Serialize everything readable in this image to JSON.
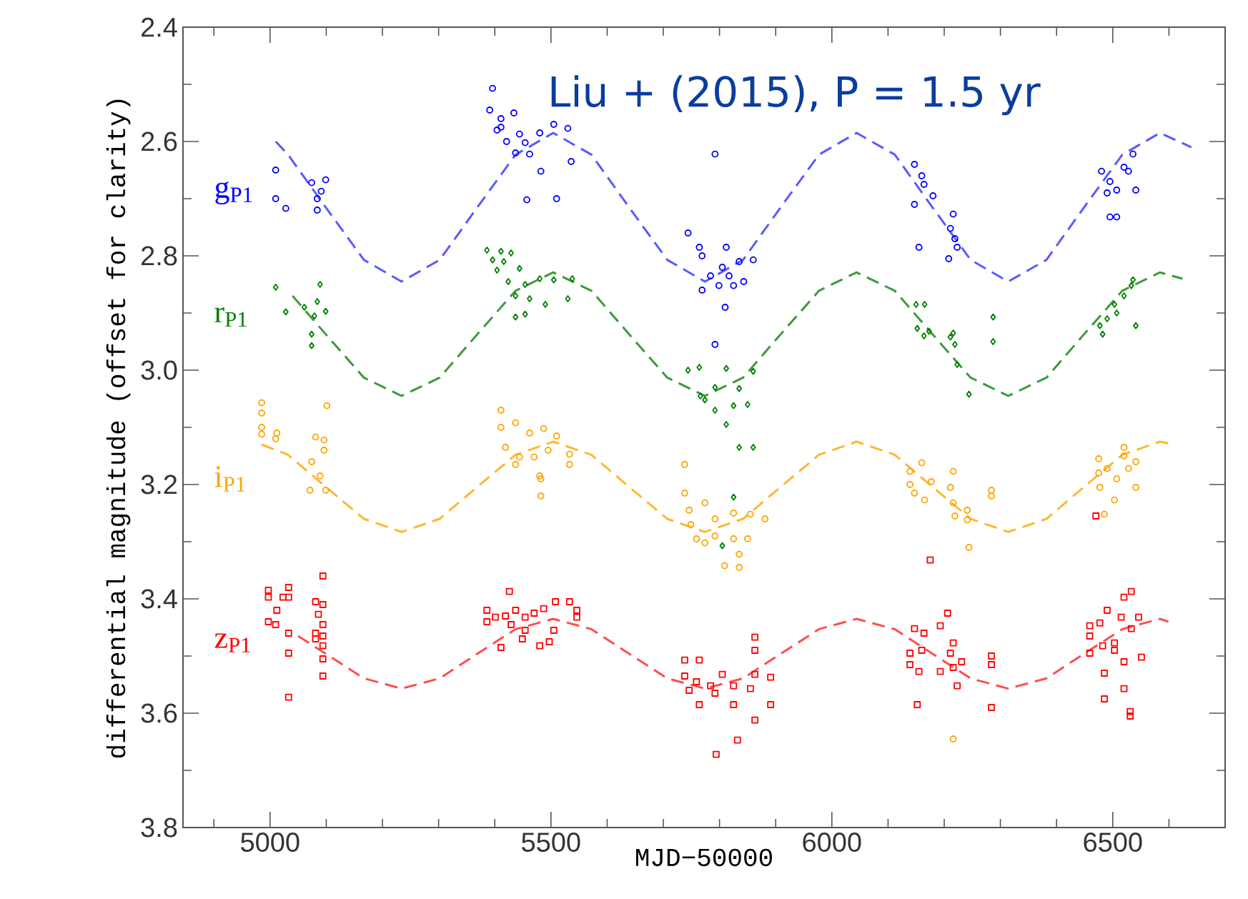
{
  "chart_data": {
    "type": "scatter",
    "xlabel": "MJD−50000",
    "ylabel": "differential magnitude (offset for clarity)",
    "annotations": [
      "Liu + (2015), P = 1.5 yr"
    ],
    "xlim": [
      4845,
      6700
    ],
    "ylim": [
      3.8,
      2.4
    ],
    "xticks": [
      {
        "value": 4900,
        "label": null
      },
      5000,
      {
        "value": 5100,
        "label": null
      },
      {
        "value": 5200,
        "label": null
      },
      {
        "value": 5300,
        "label": null
      },
      {
        "value": 5400,
        "label": null
      },
      5500,
      {
        "value": 5600,
        "label": null
      },
      {
        "value": 5700,
        "label": null
      },
      {
        "value": 5800,
        "label": null
      },
      {
        "value": 5900,
        "label": null
      },
      6000,
      {
        "value": 6100,
        "label": null
      },
      {
        "value": 6200,
        "label": null
      },
      {
        "value": 6300,
        "label": null
      },
      {
        "value": 6400,
        "label": null
      },
      6500,
      {
        "value": 6600,
        "label": null
      }
    ],
    "yticks": [
      {
        "value": 2.4,
        "label": "2.4"
      },
      {
        "value": 2.5,
        "label": null
      },
      {
        "value": 2.6,
        "label": "2.6"
      },
      {
        "value": 2.7,
        "label": null
      },
      {
        "value": 2.8,
        "label": "2.8"
      },
      {
        "value": 2.9,
        "label": null
      },
      {
        "value": 3.0,
        "label": "3.0"
      },
      {
        "value": 3.1,
        "label": null
      },
      {
        "value": 3.2,
        "label": "3.2"
      },
      {
        "value": 3.3,
        "label": null
      },
      {
        "value": 3.4,
        "label": "3.4"
      },
      {
        "value": 3.5,
        "label": null
      },
      {
        "value": 3.6,
        "label": "3.6"
      },
      {
        "value": 3.7,
        "label": null
      },
      {
        "value": 3.8,
        "label": "3.8"
      }
    ],
    "tick_labels": "xy",
    "series": [
      {
        "name": "g$_{P1}$",
        "marker": "circle",
        "color": "#0000ff",
        "x": [
          5010,
          5010,
          5028,
          5074,
          5099,
          5091,
          5084,
          5084,
          5396,
          5391,
          5411,
          5434,
          5411,
          5444,
          5454,
          5437,
          5462,
          5480,
          5505,
          5530,
          5482,
          5457,
          5510,
          5536,
          5421,
          5404,
          5792,
          5744,
          5764,
          5812,
          5769,
          5784,
          5805,
          5835,
          5860,
          5825,
          5799,
          5810,
          5769,
          5843,
          5817,
          5792,
          6147,
          6160,
          6164,
          6180,
          6147,
          6155,
          6216,
          6211,
          6219,
          6223,
          6208,
          6480,
          6495,
          6520,
          6536,
          6528,
          6490,
          6507,
          6541,
          6495,
          6507
        ],
        "values": [
          2.65,
          2.7,
          2.717,
          2.672,
          2.667,
          2.687,
          2.7,
          2.72,
          2.507,
          2.545,
          2.56,
          2.55,
          2.575,
          2.587,
          2.602,
          2.62,
          2.622,
          2.585,
          2.57,
          2.577,
          2.652,
          2.702,
          2.7,
          2.635,
          2.6,
          2.58,
          2.622,
          2.76,
          2.785,
          2.785,
          2.8,
          2.835,
          2.82,
          2.81,
          2.807,
          2.852,
          2.852,
          2.89,
          2.86,
          2.845,
          2.835,
          2.955,
          2.64,
          2.66,
          2.675,
          2.695,
          2.71,
          2.785,
          2.727,
          2.752,
          2.77,
          2.785,
          2.805,
          2.652,
          2.67,
          2.645,
          2.622,
          2.652,
          2.69,
          2.685,
          2.685,
          2.732,
          2.732
        ]
      },
      {
        "name": "r$_{P1}$",
        "marker": "diamond",
        "color": "#008000",
        "x": [
          5010,
          5028,
          5089,
          5061,
          5084,
          5079,
          5099,
          5074,
          5074,
          5386,
          5411,
          5429,
          5396,
          5416,
          5444,
          5424,
          5454,
          5437,
          5462,
          5480,
          5505,
          5490,
          5437,
          5454,
          5530,
          5538,
          5404,
          5744,
          5764,
          5812,
          5860,
          5766,
          5792,
          5835,
          5792,
          5812,
          5825,
          5774,
          5850,
          5835,
          5860,
          5825,
          5805,
          6150,
          6165,
          6152,
          6173,
          6164,
          6216,
          6211,
          6219,
          6223,
          6244,
          6287,
          6287,
          6477,
          6490,
          6503,
          6520,
          6533,
          6536,
          6507,
          6541,
          6482
        ],
        "values": [
          2.855,
          2.898,
          2.85,
          2.89,
          2.88,
          2.905,
          2.897,
          2.937,
          2.957,
          2.79,
          2.792,
          2.795,
          2.807,
          2.81,
          2.822,
          2.845,
          2.85,
          2.87,
          2.875,
          2.84,
          2.842,
          2.885,
          2.907,
          2.902,
          2.875,
          2.84,
          2.825,
          3.0,
          2.995,
          2.997,
          3.002,
          3.045,
          3.03,
          3.032,
          3.07,
          3.095,
          3.062,
          3.052,
          3.06,
          3.135,
          3.135,
          3.222,
          3.307,
          2.885,
          2.885,
          2.927,
          2.932,
          2.94,
          2.935,
          2.942,
          2.955,
          2.99,
          3.042,
          2.907,
          2.95,
          2.922,
          2.91,
          2.885,
          2.87,
          2.852,
          2.842,
          2.9,
          2.922,
          2.937
        ]
      },
      {
        "name": "i$_{P1}$",
        "marker": "circle",
        "color": "#ffa500",
        "x": [
          4985,
          4985,
          4985,
          4985,
          5012,
          5101,
          5081,
          5010,
          5096,
          5096,
          5074,
          5089,
          5071,
          5099,
          5411,
          5411,
          5437,
          5462,
          5487,
          5510,
          5419,
          5444,
          5470,
          5495,
          5533,
          5533,
          5480,
          5482,
          5482,
          5437,
          5738,
          5738,
          5774,
          5746,
          5749,
          5792,
          5825,
          5855,
          5881,
          5759,
          5792,
          5825,
          5850,
          5774,
          5835,
          5809,
          5835,
          6139,
          6160,
          6139,
          6165,
          6147,
          6177,
          6216,
          6211,
          6216,
          6219,
          6241,
          6241,
          6244,
          6284,
          6284,
          6216,
          6475,
          6475,
          6490,
          6520,
          6520,
          6541,
          6528,
          6507,
          6477,
          6503,
          6485,
          6541
        ],
        "values": [
          3.057,
          3.075,
          3.1,
          3.112,
          3.11,
          3.062,
          3.117,
          3.12,
          3.122,
          3.14,
          3.16,
          3.185,
          3.21,
          3.21,
          3.07,
          3.1,
          3.092,
          3.11,
          3.102,
          3.115,
          3.135,
          3.152,
          3.152,
          3.14,
          3.147,
          3.165,
          3.185,
          3.22,
          3.19,
          3.165,
          3.165,
          3.215,
          3.232,
          3.245,
          3.27,
          3.26,
          3.25,
          3.252,
          3.26,
          3.295,
          3.29,
          3.295,
          3.295,
          3.302,
          3.322,
          3.342,
          3.345,
          3.177,
          3.162,
          3.2,
          3.227,
          3.215,
          3.195,
          3.177,
          3.205,
          3.232,
          3.255,
          3.245,
          3.262,
          3.31,
          3.21,
          3.22,
          3.645,
          3.155,
          3.18,
          3.172,
          3.135,
          3.15,
          3.16,
          3.172,
          3.19,
          3.205,
          3.227,
          3.252,
          3.205
        ]
      },
      {
        "name": "z$_{P1}$",
        "marker": "square",
        "color": "#ff0000",
        "x": [
          4997,
          4997,
          5023,
          5012,
          5033,
          5033,
          4997,
          5010,
          5033,
          5033,
          5033,
          5094,
          5081,
          5094,
          5086,
          5094,
          5081,
          5094,
          5081,
          5094,
          5094,
          5094,
          5426,
          5386,
          5401,
          5419,
          5437,
          5454,
          5470,
          5487,
          5508,
          5533,
          5546,
          5386,
          5429,
          5454,
          5449,
          5480,
          5497,
          5505,
          5411,
          5546,
          5738,
          5738,
          5759,
          5764,
          5784,
          5805,
          5825,
          5855,
          5863,
          5863,
          5863,
          5891,
          5891,
          5764,
          5825,
          5863,
          5832,
          5794,
          5792,
          5746,
          6147,
          6164,
          6139,
          6160,
          6139,
          6155,
          6193,
          6206,
          6216,
          6211,
          6231,
          6216,
          6223,
          6193,
          6152,
          6284,
          6284,
          6284,
          6175,
          6470,
          6459,
          6459,
          6459,
          6477,
          6490,
          6520,
          6533,
          6515,
          6482,
          6503,
          6533,
          6546,
          6551,
          6520,
          6485,
          6485,
          6520,
          6531,
          6531,
          6503
        ],
        "values": [
          3.385,
          3.397,
          3.397,
          3.42,
          3.38,
          3.397,
          3.44,
          3.445,
          3.46,
          3.495,
          3.572,
          3.36,
          3.405,
          3.41,
          3.427,
          3.445,
          3.46,
          3.465,
          3.47,
          3.482,
          3.505,
          3.535,
          3.387,
          3.42,
          3.432,
          3.43,
          3.42,
          3.432,
          3.425,
          3.417,
          3.405,
          3.405,
          3.42,
          3.44,
          3.445,
          3.455,
          3.47,
          3.482,
          3.475,
          3.455,
          3.485,
          3.432,
          3.507,
          3.535,
          3.545,
          3.507,
          3.552,
          3.532,
          3.552,
          3.557,
          3.532,
          3.49,
          3.467,
          3.537,
          3.585,
          3.585,
          3.585,
          3.612,
          3.647,
          3.672,
          3.565,
          3.56,
          3.452,
          3.46,
          3.495,
          3.49,
          3.515,
          3.527,
          3.447,
          3.425,
          3.477,
          3.495,
          3.51,
          3.52,
          3.552,
          3.527,
          3.585,
          3.5,
          3.515,
          3.59,
          3.332,
          3.255,
          3.447,
          3.465,
          3.495,
          3.442,
          3.42,
          3.397,
          3.387,
          3.432,
          3.482,
          3.477,
          3.452,
          3.432,
          3.502,
          3.51,
          3.53,
          3.575,
          3.557,
          3.597,
          3.605,
          3.49
        ]
      },
      {
        "type": "line",
        "line_style": "dashed",
        "marker": "none",
        "color": "#5a5aff",
        "x": [
          5010,
          5032,
          5099,
          5167,
          5234,
          5302,
          5369,
          5437,
          5504,
          5572,
          5639,
          5707,
          5774,
          5842,
          5909,
          5977,
          6044,
          6112,
          6179,
          6247,
          6314,
          6382,
          6449,
          6517,
          6584,
          6640
        ],
        "values": [
          2.6,
          2.623,
          2.715,
          2.807,
          2.845,
          2.807,
          2.715,
          2.623,
          2.585,
          2.623,
          2.715,
          2.807,
          2.845,
          2.807,
          2.715,
          2.623,
          2.585,
          2.623,
          2.715,
          2.807,
          2.845,
          2.807,
          2.715,
          2.623,
          2.585,
          2.61
        ]
      },
      {
        "type": "line",
        "line_style": "dashed",
        "marker": "none",
        "color": "#3c9a3c",
        "x": [
          5040,
          5099,
          5167,
          5234,
          5302,
          5369,
          5437,
          5504,
          5572,
          5639,
          5707,
          5774,
          5842,
          5909,
          5977,
          6044,
          6112,
          6179,
          6247,
          6314,
          6382,
          6449,
          6517,
          6584,
          6624
        ],
        "values": [
          2.87,
          2.937,
          3.013,
          3.045,
          3.013,
          2.937,
          2.861,
          2.829,
          2.861,
          2.937,
          3.013,
          3.045,
          3.013,
          2.937,
          2.861,
          2.829,
          2.861,
          2.937,
          3.013,
          3.045,
          3.013,
          2.937,
          2.861,
          2.829,
          2.84
        ]
      },
      {
        "type": "line",
        "line_style": "dashed",
        "marker": "none",
        "color": "#ffb733",
        "x": [
          4985,
          5032,
          5099,
          5167,
          5234,
          5302,
          5369,
          5437,
          5504,
          5572,
          5639,
          5707,
          5774,
          5842,
          5909,
          5977,
          6044,
          6112,
          6179,
          6247,
          6314,
          6382,
          6449,
          6517,
          6584,
          6600
        ],
        "values": [
          3.13,
          3.148,
          3.204,
          3.26,
          3.283,
          3.26,
          3.204,
          3.148,
          3.125,
          3.148,
          3.204,
          3.26,
          3.283,
          3.26,
          3.204,
          3.148,
          3.125,
          3.148,
          3.204,
          3.26,
          3.283,
          3.26,
          3.204,
          3.148,
          3.125,
          3.128
        ]
      },
      {
        "type": "line",
        "line_style": "dashed",
        "marker": "none",
        "color": "#ff4d4d",
        "x": [
          5050,
          5099,
          5167,
          5234,
          5302,
          5369,
          5437,
          5504,
          5572,
          5639,
          5707,
          5774,
          5842,
          5909,
          5977,
          6044,
          6112,
          6179,
          6247,
          6314,
          6382,
          6449,
          6517,
          6584,
          6599
        ],
        "values": [
          3.465,
          3.496,
          3.539,
          3.557,
          3.539,
          3.496,
          3.453,
          3.435,
          3.453,
          3.496,
          3.539,
          3.557,
          3.539,
          3.496,
          3.453,
          3.435,
          3.453,
          3.496,
          3.539,
          3.557,
          3.539,
          3.496,
          3.453,
          3.435,
          3.44
        ]
      }
    ]
  }
}
